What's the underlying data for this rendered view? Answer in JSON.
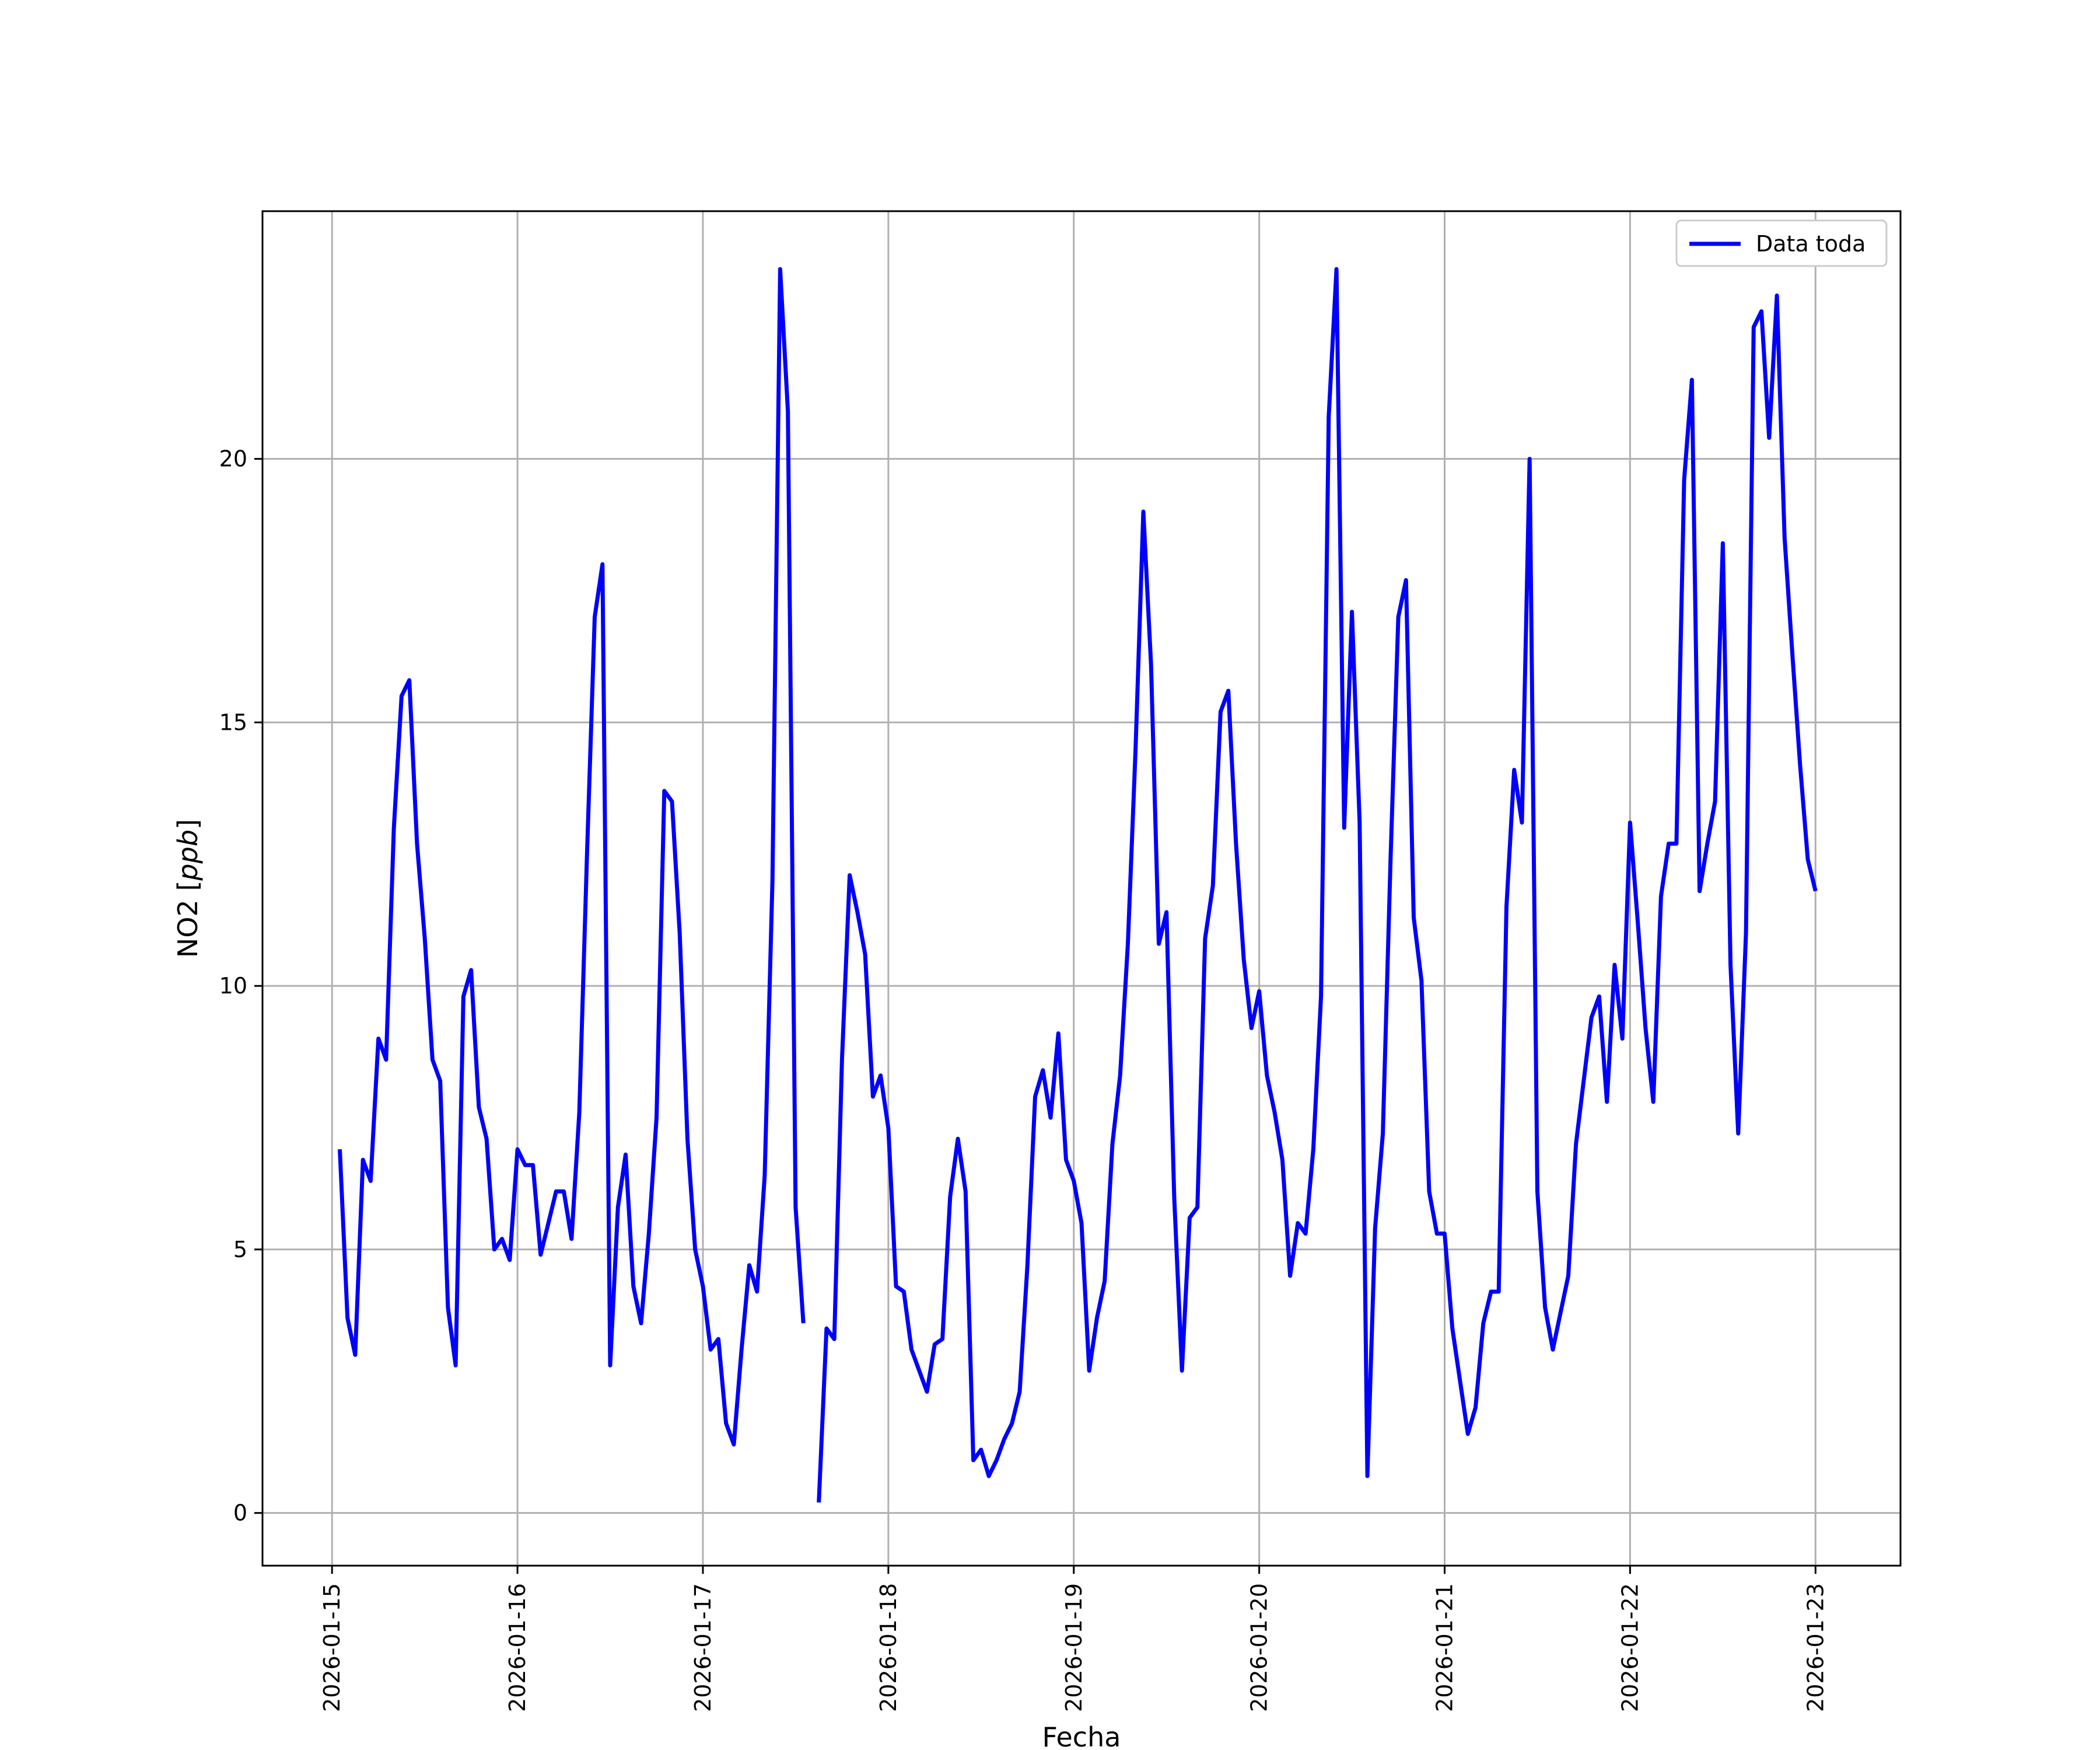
{
  "chart_data": {
    "type": "line",
    "xlabel": "Fecha",
    "ylabel": "NO2 [ppb]",
    "ylabel_main": "NO2 [",
    "ylabel_unit": "ppb",
    "ylabel_close": "]",
    "grid": true,
    "legend_placement": "top-right",
    "xlim": [
      "2026-01-14 15:00",
      "2026-01-23 11:00"
    ],
    "ylim": [
      -1,
      24.7
    ],
    "x_ticks": [
      "2026-01-15",
      "2026-01-16",
      "2026-01-17",
      "2026-01-18",
      "2026-01-19",
      "2026-01-20",
      "2026-01-21",
      "2026-01-22",
      "2026-01-23"
    ],
    "y_ticks": [
      0,
      5,
      10,
      15,
      20
    ],
    "y_tick_labels": [
      "0",
      "5",
      "10",
      "15",
      "20"
    ],
    "series": [
      {
        "name": "Data toda",
        "color": "#0000ff",
        "x_unit": "hours since 2026-01-15 00:00 (2-hour steps)",
        "points": [
          [
            1,
            6.9
          ],
          [
            2,
            3.7
          ],
          [
            3,
            3.0
          ],
          [
            4,
            6.7
          ],
          [
            5,
            6.3
          ],
          [
            6,
            9.0
          ],
          [
            7,
            8.6
          ],
          [
            8,
            13.0
          ],
          [
            9,
            15.5
          ],
          [
            10,
            15.8
          ],
          [
            11,
            12.7
          ],
          [
            12,
            10.9
          ],
          [
            13,
            8.6
          ],
          [
            14,
            8.2
          ],
          [
            15,
            3.9
          ],
          [
            16,
            2.8
          ],
          [
            17,
            9.8
          ],
          [
            18,
            10.3
          ],
          [
            19,
            7.7
          ],
          [
            20,
            7.1
          ],
          [
            21,
            5.0
          ],
          [
            22,
            5.2
          ],
          [
            23,
            4.8
          ],
          [
            24,
            6.9
          ],
          [
            25,
            6.6
          ],
          [
            26,
            6.6
          ],
          [
            27,
            4.9
          ],
          [
            28,
            5.5
          ],
          [
            29,
            6.1
          ],
          [
            30,
            6.1
          ],
          [
            31,
            5.2
          ],
          [
            32,
            7.6
          ],
          [
            33,
            12.5
          ],
          [
            34,
            17.0
          ],
          [
            35,
            18.0
          ],
          [
            36,
            2.8
          ],
          [
            37,
            5.8
          ],
          [
            38,
            6.8
          ],
          [
            39,
            4.3
          ],
          [
            40,
            3.6
          ],
          [
            41,
            5.3
          ],
          [
            42,
            7.5
          ],
          [
            43,
            13.7
          ],
          [
            44,
            13.5
          ],
          [
            45,
            11.0
          ],
          [
            46,
            7.1
          ],
          [
            47,
            5.0
          ],
          [
            48,
            4.3
          ],
          [
            49,
            3.1
          ],
          [
            50,
            3.3
          ],
          [
            51,
            1.7
          ],
          [
            52,
            1.3
          ],
          [
            53,
            3.1
          ],
          [
            54,
            4.7
          ],
          [
            55,
            4.2
          ],
          [
            56,
            6.4
          ],
          [
            57,
            12.0
          ],
          [
            58,
            23.6
          ],
          [
            59,
            20.9
          ],
          [
            60,
            5.8
          ],
          [
            61,
            3.6
          ],
          [
            62,
            null
          ],
          [
            63,
            0.2
          ],
          [
            64,
            3.5
          ],
          [
            65,
            3.3
          ],
          [
            66,
            8.6
          ],
          [
            67,
            12.1
          ],
          [
            68,
            11.4
          ],
          [
            69,
            10.6
          ],
          [
            70,
            7.9
          ],
          [
            71,
            8.3
          ],
          [
            72,
            7.3
          ],
          [
            73,
            4.3
          ],
          [
            74,
            4.2
          ],
          [
            75,
            3.1
          ],
          [
            76,
            2.7
          ],
          [
            77,
            2.3
          ],
          [
            78,
            3.2
          ],
          [
            79,
            3.3
          ],
          [
            80,
            6.0
          ],
          [
            81,
            7.1
          ],
          [
            82,
            6.1
          ],
          [
            83,
            1.0
          ],
          [
            84,
            1.2
          ],
          [
            85,
            0.7
          ],
          [
            86,
            1.0
          ],
          [
            87,
            1.4
          ],
          [
            88,
            1.7
          ],
          [
            89,
            2.3
          ],
          [
            90,
            4.7
          ],
          [
            91,
            7.9
          ],
          [
            92,
            8.4
          ],
          [
            93,
            7.5
          ],
          [
            94,
            9.1
          ],
          [
            95,
            6.7
          ],
          [
            96,
            6.3
          ],
          [
            97,
            5.5
          ],
          [
            98,
            2.7
          ],
          [
            99,
            3.7
          ],
          [
            100,
            4.4
          ],
          [
            101,
            7.0
          ],
          [
            102,
            8.3
          ],
          [
            103,
            10.8
          ],
          [
            104,
            14.5
          ],
          [
            105,
            19.0
          ],
          [
            106,
            16.1
          ],
          [
            107,
            10.8
          ],
          [
            108,
            11.4
          ],
          [
            109,
            6.0
          ],
          [
            110,
            2.7
          ],
          [
            111,
            5.6
          ],
          [
            112,
            5.8
          ],
          [
            113,
            10.9
          ],
          [
            114,
            11.9
          ],
          [
            115,
            15.2
          ],
          [
            116,
            15.6
          ],
          [
            117,
            12.7
          ],
          [
            118,
            10.5
          ],
          [
            119,
            9.2
          ],
          [
            120,
            9.9
          ],
          [
            121,
            8.3
          ],
          [
            122,
            7.6
          ],
          [
            123,
            6.7
          ],
          [
            124,
            4.5
          ],
          [
            125,
            5.5
          ],
          [
            126,
            5.3
          ],
          [
            127,
            6.9
          ],
          [
            128,
            9.8
          ],
          [
            129,
            20.8
          ],
          [
            130,
            23.6
          ],
          [
            131,
            13.0
          ],
          [
            132,
            17.1
          ],
          [
            133,
            13.1
          ],
          [
            134,
            0.7
          ],
          [
            135,
            5.4
          ],
          [
            136,
            7.2
          ],
          [
            137,
            12.4
          ],
          [
            138,
            17.0
          ],
          [
            139,
            17.7
          ],
          [
            140,
            11.3
          ],
          [
            141,
            10.1
          ],
          [
            142,
            6.1
          ],
          [
            143,
            5.3
          ],
          [
            144,
            5.3
          ],
          [
            145,
            3.5
          ],
          [
            146,
            2.5
          ],
          [
            147,
            1.5
          ],
          [
            148,
            2.0
          ],
          [
            149,
            3.6
          ],
          [
            150,
            4.2
          ],
          [
            151,
            4.2
          ],
          [
            152,
            11.5
          ],
          [
            153,
            14.1
          ],
          [
            154,
            13.1
          ],
          [
            155,
            20.0
          ],
          [
            156,
            6.1
          ],
          [
            157,
            3.9
          ],
          [
            158,
            3.1
          ],
          [
            159,
            3.8
          ],
          [
            160,
            4.5
          ],
          [
            161,
            7.0
          ],
          [
            162,
            8.2
          ],
          [
            163,
            9.4
          ],
          [
            164,
            9.8
          ],
          [
            165,
            7.8
          ],
          [
            166,
            10.4
          ],
          [
            167,
            9.0
          ],
          [
            168,
            13.1
          ],
          [
            169,
            11.2
          ],
          [
            170,
            9.2
          ],
          [
            171,
            7.8
          ],
          [
            172,
            11.7
          ],
          [
            173,
            12.7
          ],
          [
            174,
            12.7
          ],
          [
            175,
            19.6
          ],
          [
            176,
            21.5
          ],
          [
            177,
            11.8
          ],
          [
            178,
            12.7
          ],
          [
            179,
            13.5
          ],
          [
            180,
            18.4
          ],
          [
            181,
            10.4
          ],
          [
            182,
            7.2
          ],
          [
            183,
            11.0
          ],
          [
            184,
            22.5
          ],
          [
            185,
            22.8
          ],
          [
            186,
            20.4
          ],
          [
            187,
            23.1
          ],
          [
            188,
            18.5
          ],
          [
            189,
            16.3
          ],
          [
            190,
            14.2
          ],
          [
            191,
            12.4
          ],
          [
            192,
            11.8
          ]
        ]
      }
    ]
  }
}
